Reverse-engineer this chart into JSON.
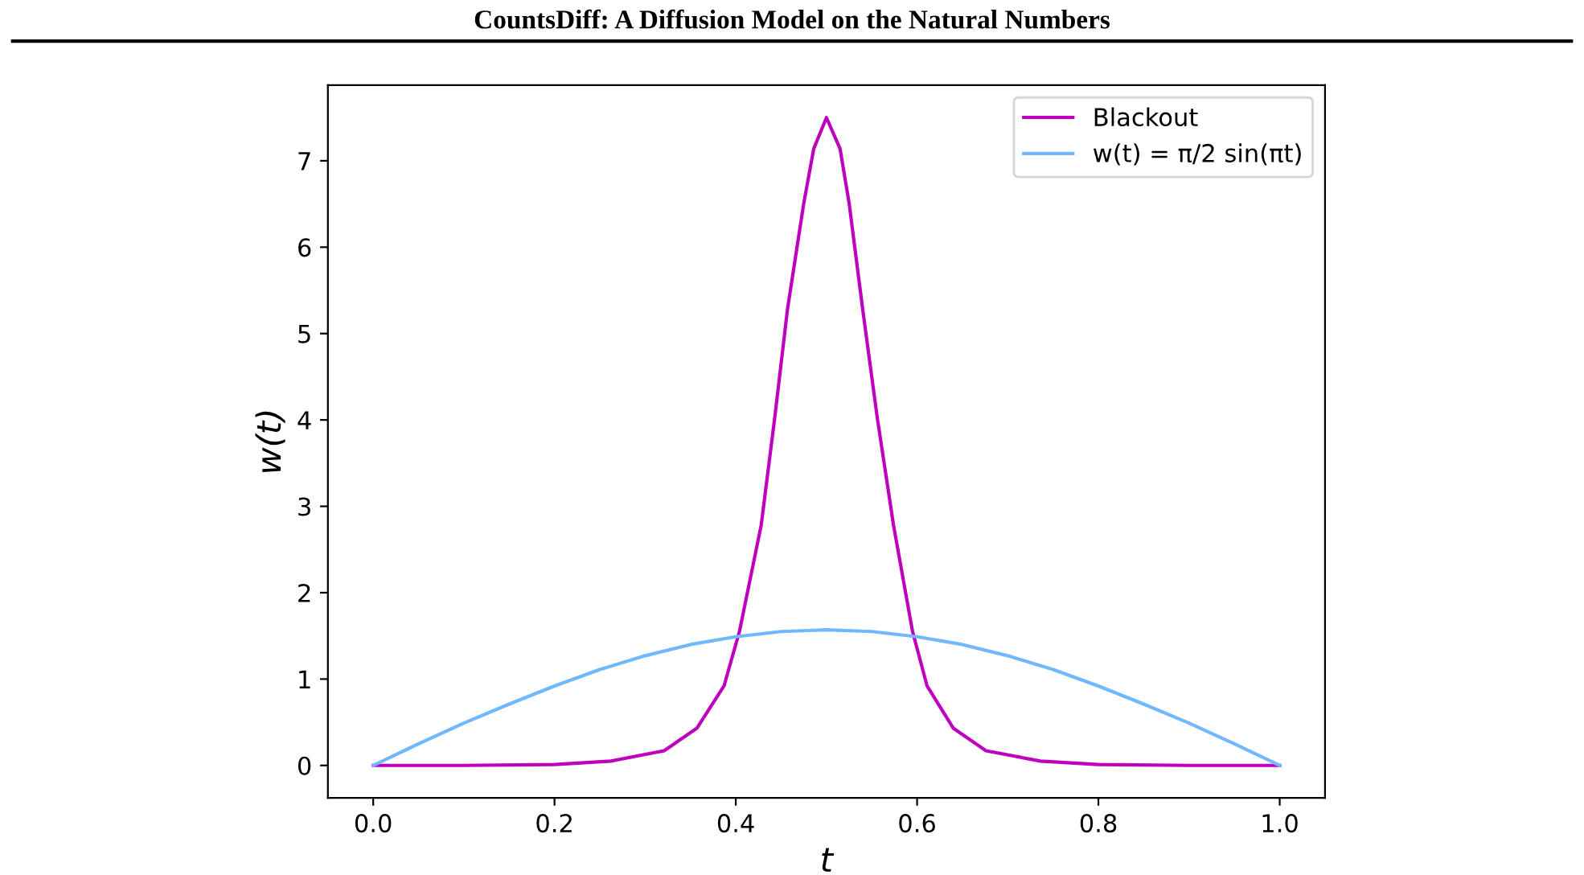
{
  "chart_data": {
    "type": "line",
    "title": "CountsDiff: A Diffusion Model on the Natural Numbers",
    "xlabel": "t",
    "ylabel": "w(t)",
    "series": [
      {
        "name": "Blackout",
        "color": "#bf00bf",
        "x": [
          0,
          0.1,
          0.2,
          0.262,
          0.321,
          0.357,
          0.387,
          0.404,
          0.428,
          0.443,
          0.457,
          0.475,
          0.486,
          0.5,
          0.515,
          0.525,
          0.54,
          0.556,
          0.574,
          0.595,
          0.611,
          0.64,
          0.676,
          0.736,
          0.8,
          0.9,
          1.0
        ],
        "values": [
          0,
          0,
          0.01,
          0.05,
          0.17,
          0.43,
          0.92,
          1.55,
          2.78,
          4.03,
          5.28,
          6.51,
          7.14,
          7.5,
          7.14,
          6.51,
          5.28,
          4.03,
          2.78,
          1.55,
          0.92,
          0.43,
          0.17,
          0.05,
          0.01,
          0,
          0
        ]
      },
      {
        "name": "w(t) = π/2 sin(πt)",
        "color": "#70b8ff",
        "x": [
          0,
          0.05,
          0.1,
          0.15,
          0.2,
          0.25,
          0.3,
          0.35,
          0.4,
          0.45,
          0.5,
          0.55,
          0.6,
          0.65,
          0.7,
          0.75,
          0.8,
          0.85,
          0.9,
          0.95,
          1.0
        ],
        "values": [
          0,
          0.25,
          0.49,
          0.71,
          0.92,
          1.11,
          1.27,
          1.4,
          1.49,
          1.55,
          1.57,
          1.55,
          1.49,
          1.4,
          1.27,
          1.11,
          0.92,
          0.71,
          0.49,
          0.25,
          0
        ]
      }
    ],
    "xlim": [
      -0.05,
      1.05
    ],
    "ylim": [
      -0.375,
      7.875
    ],
    "xticks": [
      {
        "value": 0,
        "label": "0.0"
      },
      {
        "value": 0.2,
        "label": "0.2"
      },
      {
        "value": 0.4,
        "label": "0.4"
      },
      {
        "value": 0.6,
        "label": "0.6"
      },
      {
        "value": 0.8,
        "label": "0.8"
      },
      {
        "value": 1.0,
        "label": "1.0"
      }
    ],
    "yticks": [
      0,
      1,
      2,
      3,
      4,
      5,
      6,
      7
    ],
    "legend": "top right",
    "grid": false,
    "marker": "none",
    "line_style": "solid"
  }
}
